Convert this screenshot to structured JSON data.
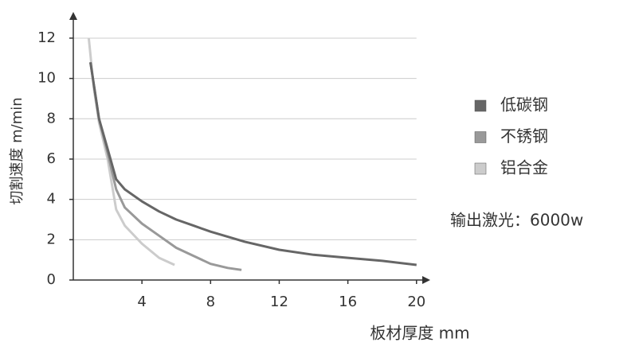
{
  "chart_data": {
    "type": "line",
    "y_label": "切割速度 m/min",
    "x_label": "板材厚度 mm",
    "annotation": "输出激光：6000w",
    "xlim": [
      0,
      20.8
    ],
    "ylim": [
      0,
      13.3
    ],
    "xticks": [
      4,
      8,
      12,
      16,
      20
    ],
    "yticks": [
      0,
      2,
      4,
      6,
      8,
      10,
      12
    ],
    "grid": true,
    "legend_position": "right",
    "series": [
      {
        "name": "低碳钢",
        "color": "#666666",
        "x": [
          1,
          1.5,
          2,
          2.5,
          3,
          4,
          5,
          6,
          7,
          8,
          10,
          12,
          14,
          16,
          18,
          20
        ],
        "values": [
          10.8,
          8,
          6.5,
          5,
          4.5,
          3.9,
          3.4,
          3.0,
          2.7,
          2.4,
          1.9,
          1.5,
          1.25,
          1.1,
          0.95,
          0.75
        ]
      },
      {
        "name": "不锈钢",
        "color": "#999999",
        "x": [
          1,
          1.5,
          2,
          2.5,
          3,
          4,
          5,
          6,
          7,
          8,
          9,
          9.8
        ],
        "values": [
          10.8,
          8,
          6.3,
          4.5,
          3.6,
          2.8,
          2.2,
          1.6,
          1.2,
          0.8,
          0.6,
          0.5
        ]
      },
      {
        "name": "铝合金",
        "color": "#cccccc",
        "x": [
          0.9,
          1.2,
          1.5,
          2,
          2.5,
          3,
          4,
          5,
          5.9
        ],
        "values": [
          12,
          9.5,
          7.8,
          6,
          3.5,
          2.7,
          1.8,
          1.1,
          0.75
        ]
      }
    ]
  }
}
